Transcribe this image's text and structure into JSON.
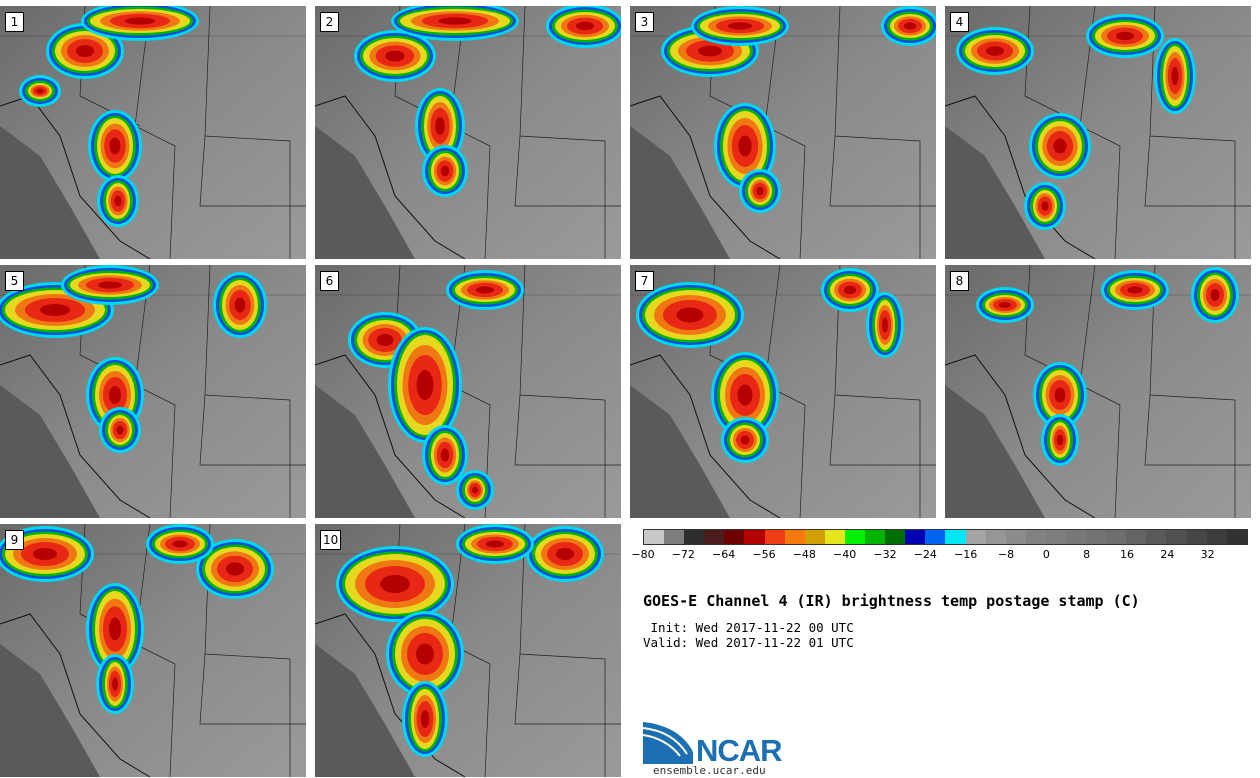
{
  "panels": [
    {
      "label": "1"
    },
    {
      "label": "2"
    },
    {
      "label": "3"
    },
    {
      "label": "4"
    },
    {
      "label": "5"
    },
    {
      "label": "6"
    },
    {
      "label": "7"
    },
    {
      "label": "8"
    },
    {
      "label": "9"
    },
    {
      "label": "10"
    }
  ],
  "colorbar": {
    "colors": [
      "#c8c8c8",
      "#7d7d7d",
      "#2e2e2e",
      "#4a1c1c",
      "#6e0000",
      "#b40000",
      "#f03c14",
      "#f5780a",
      "#d2a000",
      "#e6e61e",
      "#00f000",
      "#00b400",
      "#006e00",
      "#0000b4",
      "#0064f0",
      "#00e6f5",
      "#a5a5a5",
      "#969696",
      "#8c8c8c",
      "#828282",
      "#7d7d7d",
      "#787878",
      "#737373",
      "#6e6e6e",
      "#646464",
      "#5a5a5a",
      "#505050",
      "#464646",
      "#3c3c3c",
      "#323232"
    ],
    "tick_labels": [
      "−80",
      "−72",
      "−64",
      "−56",
      "−48",
      "−40",
      "−32",
      "−24",
      "−16",
      "−8",
      "0",
      "8",
      "16",
      "24",
      "32"
    ]
  },
  "title": "GOES-E Channel 4 (IR) brightness temp postage stamp (C)",
  "init_text": " Init: Wed 2017-11-22 00 UTC",
  "valid_text": "Valid: Wed 2017-11-22 01 UTC",
  "logo_text": "NCAR",
  "site": "ensemble.ucar.edu"
}
